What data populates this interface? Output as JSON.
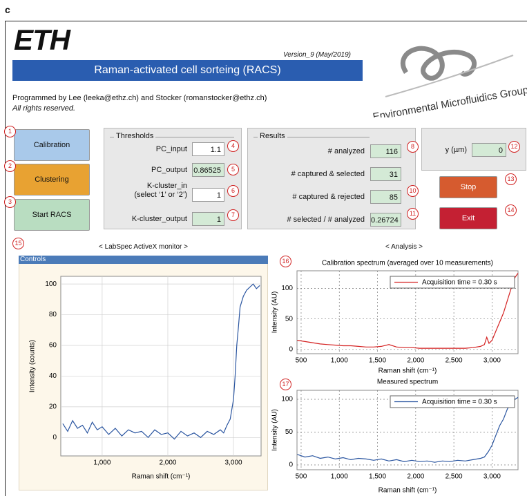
{
  "figure_label": "c",
  "header": {
    "logo": "ETH",
    "version": "Version_9 (May/2019)",
    "title": "Raman-activated cell sorteing (RACS)",
    "credits": "Programmed by Lee (leeka@ethz.ch) and Stocker (romanstocker@ethz.ch)",
    "rights": "All rights reserved.",
    "group_logo": "Environmental Microfluidics Group"
  },
  "buttons": [
    {
      "label": "Calibration",
      "marker": 1
    },
    {
      "label": "Clustering",
      "marker": 2
    },
    {
      "label": "Start RACS",
      "marker": 3
    }
  ],
  "thresholds": {
    "title": "Thresholds",
    "fields": [
      {
        "label": "PC_input",
        "value": 1.1,
        "marker": 4
      },
      {
        "label": "PC_output",
        "value": 0.86525,
        "marker": 5
      },
      {
        "label": "K-cluster_in",
        "hint": "(select ‘1’ or ‘2’)",
        "value": 1,
        "marker": 6
      },
      {
        "label": "K-cluster_output",
        "value": 1,
        "marker": 7
      }
    ]
  },
  "results": {
    "title": "Results",
    "fields": [
      {
        "label": "# analyzed",
        "value": 116,
        "marker": 8
      },
      {
        "label": "# captured & selected",
        "value": 31
      },
      {
        "label": "# captured & rejected",
        "value": 85,
        "marker": 10
      },
      {
        "label": "# selected / # analyzed",
        "value": 0.26724,
        "marker": 11
      }
    ]
  },
  "position": {
    "label": "y (µm)",
    "value": 0,
    "marker": 12
  },
  "controls": [
    {
      "label": "Stop",
      "marker": 13
    },
    {
      "label": "Exit",
      "marker": 14
    }
  ],
  "monitor_marker": 15,
  "monitor_title": "< LabSpec ActiveX monitor >",
  "analysis_title": "< Analysis >",
  "controls_bar": "Controls",
  "analysis_markers": [
    16,
    17
  ],
  "chart_data": [
    {
      "type": "line",
      "xlabel": "Raman shift (cm⁻¹)",
      "ylabel": "Intensity (counts)",
      "x": [
        400,
        475,
        550,
        625,
        700,
        775,
        850,
        925,
        1000,
        1100,
        1200,
        1300,
        1400,
        1500,
        1600,
        1700,
        1800,
        1900,
        2000,
        2100,
        2200,
        2300,
        2400,
        2500,
        2600,
        2700,
        2800,
        2850,
        2900,
        2950,
        3000,
        3025,
        3050,
        3075,
        3100,
        3150,
        3200,
        3250,
        3300,
        3350,
        3400
      ],
      "series": [
        {
          "color": "#2a55a0",
          "values": [
            9,
            4,
            11,
            6,
            8,
            3,
            10,
            5,
            7,
            2,
            6,
            1,
            5,
            3,
            4,
            0,
            5,
            2,
            3,
            -1,
            4,
            1,
            3,
            0,
            4,
            2,
            5,
            3,
            8,
            12,
            25,
            40,
            60,
            72,
            85,
            92,
            96,
            98,
            100,
            97,
            99
          ]
        }
      ],
      "xlim": [
        370,
        3420
      ],
      "ylim": [
        -12,
        105
      ],
      "xticks": [
        {
          "value": 1000,
          "label": "1,000"
        },
        {
          "value": 2000,
          "label": "2,000"
        },
        {
          "value": 3000,
          "label": "3,000"
        }
      ],
      "yticks": [
        0,
        20,
        40,
        60,
        80,
        100
      ],
      "grid": true
    },
    {
      "type": "line",
      "title": "Calibration spectrum (averaged over 10 measurements)",
      "xlabel": "Raman shift (cm⁻¹)",
      "ylabel": "Intensity (AU)",
      "x": [
        450,
        550,
        650,
        750,
        850,
        950,
        1050,
        1150,
        1250,
        1350,
        1450,
        1550,
        1650,
        1750,
        1850,
        1950,
        2050,
        2150,
        2250,
        2350,
        2450,
        2550,
        2650,
        2750,
        2850,
        2900,
        2930,
        2960,
        3000,
        3050,
        3100,
        3150,
        3200,
        3250,
        3300,
        3340
      ],
      "series": [
        {
          "name": "Acquisition time = 0.30 s",
          "color": "#d42020",
          "values": [
            15,
            13,
            11,
            9,
            8,
            7,
            6,
            6,
            5,
            4,
            4,
            5,
            8,
            4,
            3,
            3,
            2,
            2,
            2,
            2,
            2,
            2,
            2,
            3,
            5,
            8,
            20,
            10,
            15,
            30,
            45,
            60,
            80,
            100,
            118,
            125
          ]
        }
      ],
      "xlim": [
        446,
        3340
      ],
      "ylim": [
        -7,
        129
      ],
      "xticks": [
        500,
        {
          "value": 1000,
          "label": "1,000"
        },
        {
          "value": 1500,
          "label": "1,500"
        },
        {
          "value": 2000,
          "label": "2,000"
        },
        {
          "value": 2500,
          "label": "2,500"
        },
        {
          "value": 3000,
          "label": "3,000"
        }
      ],
      "yticks": [
        0,
        50,
        100
      ],
      "grid": true,
      "legend": "upper right"
    },
    {
      "type": "line",
      "title": "Measured spectrum",
      "xlabel": "Raman shift (cm⁻¹)",
      "ylabel": "Intensity (AU)",
      "x": [
        450,
        550,
        650,
        750,
        850,
        950,
        1050,
        1150,
        1250,
        1350,
        1450,
        1550,
        1650,
        1750,
        1850,
        1950,
        2050,
        2150,
        2250,
        2350,
        2450,
        2550,
        2650,
        2750,
        2850,
        2900,
        2950,
        3000,
        3050,
        3100,
        3150,
        3200,
        3250,
        3300,
        3340
      ],
      "series": [
        {
          "name": "Acquisition time = 0.30 s",
          "color": "#2a55a0",
          "values": [
            16,
            12,
            14,
            10,
            12,
            9,
            11,
            8,
            10,
            9,
            7,
            9,
            6,
            8,
            5,
            7,
            5,
            6,
            4,
            6,
            5,
            7,
            6,
            8,
            10,
            12,
            20,
            30,
            45,
            60,
            70,
            85,
            95,
            100,
            103
          ]
        }
      ],
      "xlim": [
        446,
        3340
      ],
      "ylim": [
        -7.4,
        113.7
      ],
      "xticks": [
        500,
        {
          "value": 1000,
          "label": "1,000"
        },
        {
          "value": 1500,
          "label": "1,500"
        },
        {
          "value": 2000,
          "label": "2,000"
        },
        {
          "value": 2500,
          "label": "2,500"
        },
        {
          "value": 3000,
          "label": "3,000"
        }
      ],
      "yticks": [
        0,
        50,
        100
      ],
      "grid": true,
      "legend": "upper right"
    }
  ]
}
